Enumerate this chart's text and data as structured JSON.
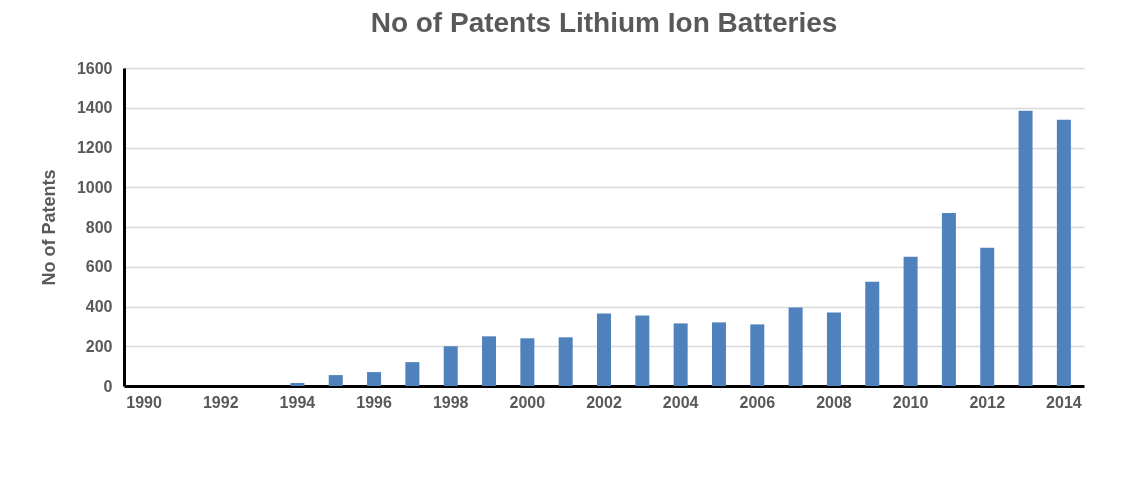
{
  "chart_data": {
    "type": "bar",
    "title": "No of Patents Lithium Ion Batteries",
    "ylabel": "No of Patents",
    "categories": [
      "1990",
      null,
      "1992",
      null,
      "1994",
      null,
      "1996",
      null,
      "1998",
      null,
      "2000",
      null,
      "2002",
      null,
      "2004",
      null,
      "2006",
      null,
      "2008",
      null,
      "2010",
      null,
      "2012",
      null,
      "2014"
    ],
    "values": [
      0,
      0,
      0,
      0,
      15,
      55,
      70,
      120,
      200,
      250,
      240,
      245,
      365,
      355,
      315,
      320,
      310,
      395,
      370,
      525,
      650,
      870,
      695,
      1385,
      1340
    ],
    "color": "#4f81bd",
    "ylim": [
      0,
      1600
    ],
    "yticks": [
      0,
      200,
      400,
      600,
      800,
      1000,
      1200,
      1400,
      1600
    ],
    "grid": "y",
    "legend": false
  }
}
